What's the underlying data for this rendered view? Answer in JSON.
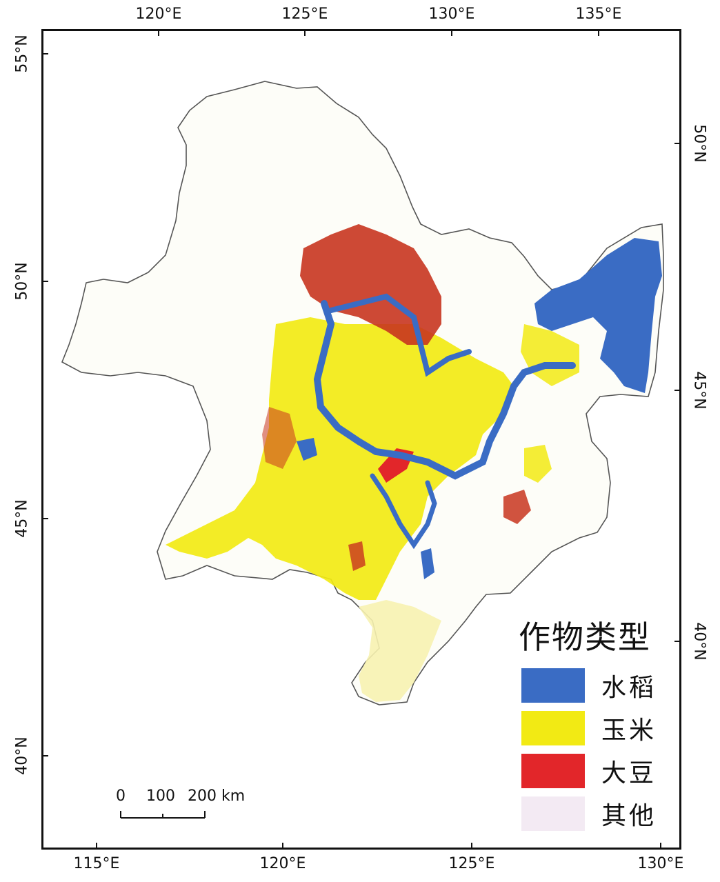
{
  "map": {
    "top_ticks": [
      "120°E",
      "125°E",
      "130°E",
      "135°E"
    ],
    "bottom_ticks": [
      "115°E",
      "120°E",
      "125°E",
      "130°E"
    ],
    "left_ticks": [
      "55°N",
      "50°N",
      "45°N",
      "40°N"
    ],
    "right_ticks": [
      "50°N",
      "45°N",
      "40°N"
    ],
    "legend": {
      "title": "作物类型",
      "items": [
        {
          "label": "水稻",
          "color": "#3a6cc4"
        },
        {
          "label": "玉米",
          "color": "#f2ea14"
        },
        {
          "label": "大豆",
          "color": "#e2262a"
        },
        {
          "label": "其他",
          "color": "#f3eaf3"
        }
      ]
    },
    "scale_bar": {
      "labels": [
        "0",
        "100",
        "200 km"
      ]
    }
  }
}
